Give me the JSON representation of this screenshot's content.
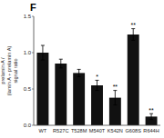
{
  "chart_data": {
    "type": "bar",
    "title": "F",
    "ylabel": "prelamin A /\n(lamin A + prelamin A)\nsignal ratio",
    "categories": [
      "WT",
      "R527C",
      "T528M",
      "M540T",
      "K542N",
      "G608S",
      "R644H"
    ],
    "values": [
      1.0,
      0.85,
      0.72,
      0.55,
      0.38,
      1.25,
      0.12
    ],
    "errors": [
      0.1,
      0.06,
      0.05,
      0.07,
      0.1,
      0.08,
      0.04
    ],
    "significance": [
      null,
      null,
      null,
      "*",
      "**",
      "**",
      "**"
    ],
    "color": "#111111",
    "ylim": [
      0,
      1.5
    ],
    "yticks": [
      {
        "value": 0.0,
        "label": "0.0"
      },
      0.5,
      {
        "value": 1.0,
        "label": "1.0"
      },
      1.5
    ],
    "grid": false
  }
}
